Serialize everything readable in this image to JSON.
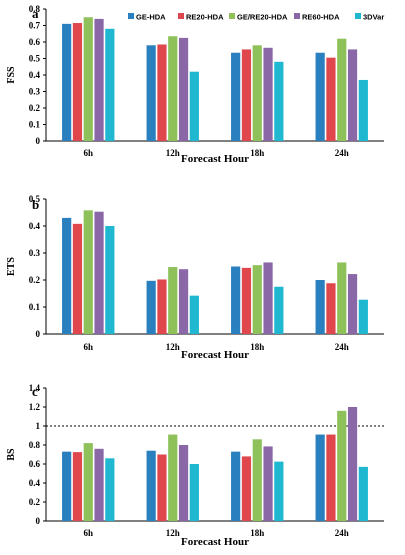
{
  "colors": [
    "#2a80bf",
    "#e0474c",
    "#8fc15a",
    "#8a68a8",
    "#20b8d0"
  ],
  "legend": [
    "GE-HDA",
    "RE20-HDA",
    "GE/RE20-HDA",
    "RE60-HDA",
    "3DVar"
  ],
  "chart_data": [
    {
      "type": "bar",
      "panel_label": "a",
      "ylabel": "FSS",
      "xlabel": "Forecast Hour",
      "categories": [
        "6h",
        "12h",
        "18h",
        "24h"
      ],
      "ylim": [
        0,
        0.8
      ],
      "yticks": [
        "0",
        "0.1",
        "0.2",
        "0.3",
        "0.4",
        "0.5",
        "0.6",
        "0.7",
        "0.8"
      ],
      "legend_position": "top",
      "series": [
        {
          "name": "GE-HDA",
          "values": [
            0.71,
            0.58,
            0.535,
            0.535
          ]
        },
        {
          "name": "RE20-HDA",
          "values": [
            0.715,
            0.585,
            0.555,
            0.505
          ]
        },
        {
          "name": "GE/RE20-HDA",
          "values": [
            0.75,
            0.635,
            0.58,
            0.62
          ]
        },
        {
          "name": "RE60-HDA",
          "values": [
            0.74,
            0.625,
            0.565,
            0.555
          ]
        },
        {
          "name": "3DVar",
          "values": [
            0.68,
            0.42,
            0.48,
            0.37
          ]
        }
      ]
    },
    {
      "type": "bar",
      "panel_label": "b",
      "ylabel": "ETS",
      "xlabel": "Forecast Hour",
      "categories": [
        "6h",
        "12h",
        "18h",
        "24h"
      ],
      "ylim": [
        0,
        0.5
      ],
      "yticks": [
        "0",
        "0.1",
        "0.2",
        "0.3",
        "0.4",
        "0.5"
      ],
      "series": [
        {
          "name": "GE-HDA",
          "values": [
            0.43,
            0.197,
            0.25,
            0.2
          ]
        },
        {
          "name": "RE20-HDA",
          "values": [
            0.408,
            0.202,
            0.245,
            0.188
          ]
        },
        {
          "name": "GE/RE20-HDA",
          "values": [
            0.458,
            0.248,
            0.255,
            0.265
          ]
        },
        {
          "name": "RE60-HDA",
          "values": [
            0.453,
            0.24,
            0.265,
            0.222
          ]
        },
        {
          "name": "3DVar",
          "values": [
            0.4,
            0.142,
            0.175,
            0.127
          ]
        }
      ]
    },
    {
      "type": "bar",
      "panel_label": "c",
      "ylabel": "BS",
      "xlabel": "Forecast Hour",
      "categories": [
        "6h",
        "12h",
        "18h",
        "24h"
      ],
      "ylim": [
        0,
        1.4
      ],
      "yticks": [
        "0",
        "0.2",
        "0.4",
        "0.6",
        "0.8",
        "1",
        "1.2",
        "1.4"
      ],
      "reference_line": 1.0,
      "series": [
        {
          "name": "GE-HDA",
          "values": [
            0.73,
            0.74,
            0.73,
            0.91
          ]
        },
        {
          "name": "RE20-HDA",
          "values": [
            0.725,
            0.7,
            0.68,
            0.91
          ]
        },
        {
          "name": "GE/RE20-HDA",
          "values": [
            0.82,
            0.91,
            0.86,
            1.16
          ]
        },
        {
          "name": "RE60-HDA",
          "values": [
            0.76,
            0.8,
            0.785,
            1.2
          ]
        },
        {
          "name": "3DVar",
          "values": [
            0.66,
            0.6,
            0.625,
            0.57
          ]
        }
      ]
    }
  ]
}
